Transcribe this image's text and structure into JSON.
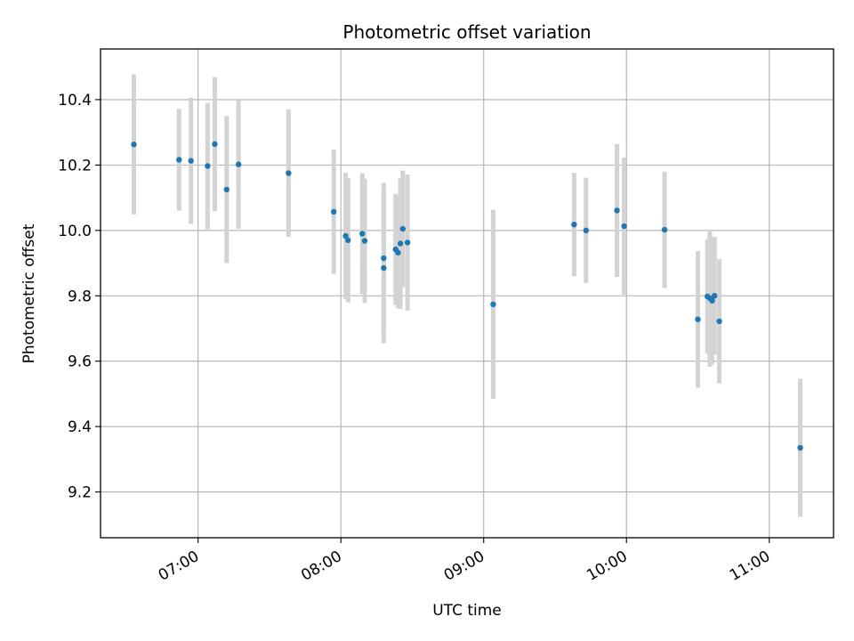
{
  "chart_data": {
    "type": "scatter",
    "title": "Photometric offset variation",
    "xlabel": "UTC time",
    "ylabel": "Photometric offset",
    "x_axis": "time",
    "xlim": [
      "06:19",
      "11:27"
    ],
    "ylim": [
      9.06,
      10.555
    ],
    "xticks": [
      {
        "value": "07:00",
        "label": "07:00"
      },
      {
        "value": "08:00",
        "label": "08:00"
      },
      {
        "value": "09:00",
        "label": "09:00"
      },
      {
        "value": "10:00",
        "label": "10:00"
      },
      {
        "value": "11:00",
        "label": "11:00"
      }
    ],
    "yticks": [
      9.2,
      9.4,
      9.6,
      9.8,
      10.0,
      10.2,
      10.4
    ],
    "ytick_labels": [
      "9.2",
      "9.4",
      "9.6",
      "9.8",
      "10.0",
      "10.2",
      "10.4"
    ],
    "grid": true,
    "legend": "none",
    "colors": {
      "marker": "#1f77b4",
      "errorbar": "#d3d3d3",
      "grid": "#b0b0b0"
    },
    "points": [
      {
        "x": "06:33",
        "y": 10.263,
        "yerr": 0.214
      },
      {
        "x": "06:52",
        "y": 10.216,
        "yerr": 0.156
      },
      {
        "x": "06:57",
        "y": 10.213,
        "yerr": 0.193
      },
      {
        "x": "07:04",
        "y": 10.197,
        "yerr": 0.193
      },
      {
        "x": "07:07",
        "y": 10.264,
        "yerr": 0.205
      },
      {
        "x": "07:12",
        "y": 10.125,
        "yerr": 0.225
      },
      {
        "x": "07:17",
        "y": 10.202,
        "yerr": 0.197
      },
      {
        "x": "07:38",
        "y": 10.175,
        "yerr": 0.195
      },
      {
        "x": "07:57",
        "y": 10.057,
        "yerr": 0.19
      },
      {
        "x": "08:02",
        "y": 9.983,
        "yerr": 0.193
      },
      {
        "x": "08:03",
        "y": 9.97,
        "yerr": 0.19
      },
      {
        "x": "08:09",
        "y": 9.99,
        "yerr": 0.185
      },
      {
        "x": "08:10",
        "y": 9.968,
        "yerr": 0.19
      },
      {
        "x": "08:18",
        "y": 9.915,
        "yerr": 0.23
      },
      {
        "x": "08:18",
        "y": 9.885,
        "yerr": 0.23
      },
      {
        "x": "08:23",
        "y": 9.942,
        "yerr": 0.17
      },
      {
        "x": "08:24",
        "y": 9.932,
        "yerr": 0.17
      },
      {
        "x": "08:25",
        "y": 9.96,
        "yerr": 0.2
      },
      {
        "x": "08:26",
        "y": 10.005,
        "yerr": 0.178
      },
      {
        "x": "08:28",
        "y": 9.963,
        "yerr": 0.208
      },
      {
        "x": "09:04",
        "y": 9.774,
        "yerr": 0.289
      },
      {
        "x": "09:38",
        "y": 10.018,
        "yerr": 0.158
      },
      {
        "x": "09:43",
        "y": 10.0,
        "yerr": 0.161
      },
      {
        "x": "09:56",
        "y": 10.061,
        "yerr": 0.203
      },
      {
        "x": "09:59",
        "y": 10.013,
        "yerr": 0.21
      },
      {
        "x": "10:16",
        "y": 10.002,
        "yerr": 0.178
      },
      {
        "x": "10:30",
        "y": 9.728,
        "yerr": 0.209
      },
      {
        "x": "10:34",
        "y": 9.798,
        "yerr": 0.175
      },
      {
        "x": "10:35",
        "y": 9.793,
        "yerr": 0.21
      },
      {
        "x": "10:36",
        "y": 9.785,
        "yerr": 0.195
      },
      {
        "x": "10:37",
        "y": 9.8,
        "yerr": 0.18
      },
      {
        "x": "10:39",
        "y": 9.722,
        "yerr": 0.19
      },
      {
        "x": "11:13",
        "y": 9.335,
        "yerr": 0.211
      }
    ]
  }
}
